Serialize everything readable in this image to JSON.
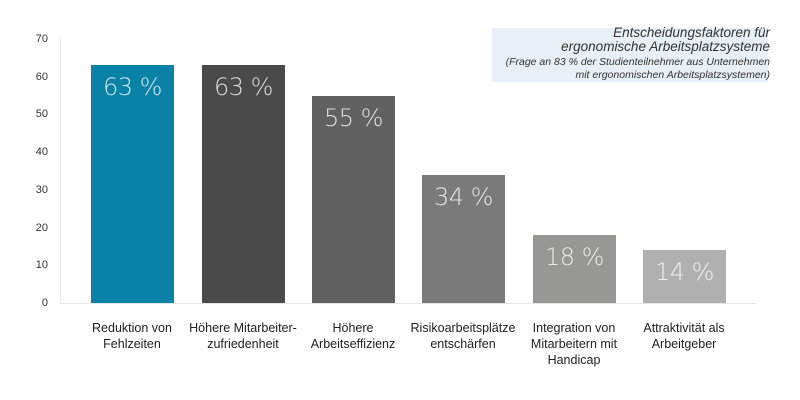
{
  "chart_data": {
    "type": "bar",
    "title": "Entscheidungsfaktoren für ergonomische Arbeitsplatzsysteme",
    "subtitle": "(Frage an 83 % der Studienteilnehmer aus Unternehmen mit ergonomischen Arbeitsplatzsystemen)",
    "xlabel": "",
    "ylabel": "",
    "ylim": [
      0,
      70
    ],
    "yticks": [
      0,
      10,
      20,
      30,
      40,
      50,
      60,
      70
    ],
    "grid": false,
    "categories": [
      "Reduktion von Fehlzeiten",
      "Höhere Mitarbeiter-zufriedenheit",
      "Höhere Arbeitseffizienz",
      "Risikoarbeitsplätze entschärfen",
      "Integration von Mitarbeitern mit Handicap",
      "Attraktivität als Arbeitgeber"
    ],
    "values": [
      63,
      63,
      55,
      34,
      18,
      14
    ],
    "value_labels": [
      "63 %",
      "63 %",
      "55 %",
      "34 %",
      "18 %",
      "14 %"
    ],
    "colors": [
      "#0a82a8",
      "#4a4a4a",
      "#616161",
      "#7a7a7a",
      "#979795",
      "#b0b0b0"
    ]
  },
  "legend": {
    "title_line1": "Entscheidungsfaktoren für",
    "title_line2": "ergonomische Arbeitsplatzsysteme",
    "sub_line1": "(Frage an 83 % der Studienteilnehmer aus Unternehmen",
    "sub_line2": "mit ergonomischen Arbeitsplatzsystemen)"
  },
  "axis": {
    "ticks": [
      "0",
      "10",
      "20",
      "30",
      "40",
      "50",
      "60",
      "70"
    ]
  },
  "labels": [
    [
      "Reduktion von",
      "Fehlzeiten"
    ],
    [
      "Höhere Mitarbeiter-",
      "zufriedenheit"
    ],
    [
      "Höhere",
      "Arbeitseffizienz"
    ],
    [
      "Risikoarbeitsplätze",
      "entschärfen"
    ],
    [
      "Integration von",
      "Mitarbeitern mit",
      "Handicap"
    ],
    [
      "Attraktivität als",
      "Arbeitgeber"
    ]
  ]
}
